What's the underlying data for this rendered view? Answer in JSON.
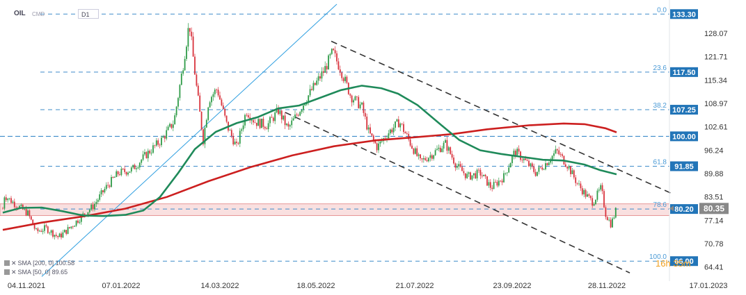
{
  "header": {
    "symbol": "OIL",
    "market": "CMD",
    "timeframe": "D1"
  },
  "indicators": [
    {
      "label": "SMA",
      "params": "[200, 0]",
      "value": "100.58"
    },
    {
      "label": "SMA",
      "params": "[50, 0]",
      "value": "89.65"
    }
  ],
  "timer": {
    "text": "16h 35m"
  },
  "colors": {
    "candle_up": "#2e9b47",
    "candle_down": "#d8323c",
    "sma200": "#cc1f1f",
    "sma50": "#1f8a5a",
    "fib_line": "#3d8bc9",
    "price_tag": "#2275b8",
    "current_tag": "#888888",
    "zone": "#f4c6c6"
  },
  "chart_data": {
    "type": "candlestick",
    "ylim": [
      61.5,
      136
    ],
    "x_ticks": [
      "04.11.2021",
      "07.01.2022",
      "14.03.2022",
      "18.05.2022",
      "21.07.2022",
      "23.09.2022",
      "28.11.2022",
      "17.01.2023"
    ],
    "y_ticks": [
      128.07,
      121.71,
      115.34,
      108.97,
      102.61,
      96.24,
      89.88,
      83.51,
      77.14,
      70.78,
      64.41
    ],
    "fibonacci": [
      {
        "level": "0.0",
        "price": 133.3
      },
      {
        "level": "23.6",
        "price": 117.5
      },
      {
        "level": "38.2",
        "price": 107.25
      },
      {
        "level": "",
        "price": 100.0
      },
      {
        "level": "61.8",
        "price": 91.85
      },
      {
        "level": "78.6",
        "price": 80.2
      },
      {
        "level": "100.0",
        "price": 66.0
      }
    ],
    "current_price": 80.35,
    "sma200_value": 100.58,
    "sma50_value": 89.65
  }
}
